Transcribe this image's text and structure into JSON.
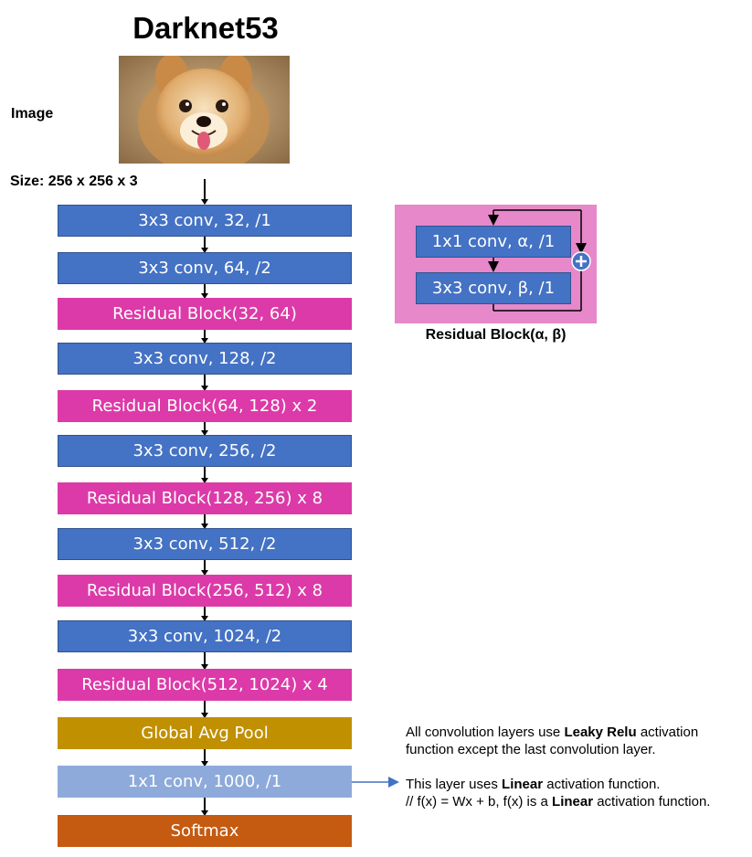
{
  "title": "Darknet53",
  "image_label": "Image",
  "size_label": "Size: 256 x 256 x 3",
  "layers": [
    {
      "label": "3x3 conv, 32, /1",
      "kind": "conv"
    },
    {
      "label": "3x3 conv, 64, /2",
      "kind": "conv"
    },
    {
      "label": "Residual Block(32, 64)",
      "kind": "res"
    },
    {
      "label": "3x3 conv, 128, /2",
      "kind": "conv"
    },
    {
      "label": "Residual Block(64, 128) x 2",
      "kind": "res"
    },
    {
      "label": "3x3 conv, 256, /2",
      "kind": "conv"
    },
    {
      "label": "Residual Block(128, 256) x 8",
      "kind": "res"
    },
    {
      "label": "3x3 conv, 512, /2",
      "kind": "conv"
    },
    {
      "label": "Residual Block(256, 512) x 8",
      "kind": "res"
    },
    {
      "label": "3x3 conv, 1024, /2",
      "kind": "conv"
    },
    {
      "label": "Residual Block(512, 1024) x 4",
      "kind": "res"
    },
    {
      "label": "Global Avg Pool",
      "kind": "pool"
    },
    {
      "label": "1x1 conv, 1000, /1",
      "kind": "fc"
    },
    {
      "label": "Softmax",
      "kind": "soft"
    }
  ],
  "residual_block": {
    "layer1": "1x1 conv, α, /1",
    "layer2": "3x3 conv, β, /1",
    "caption": "Residual Block(α, β)",
    "add_symbol": "+"
  },
  "notes": {
    "activation_prefix": "All convolution layers use ",
    "activation_bold": "Leaky Relu",
    "activation_suffix1": " activation",
    "activation_line2": "function except the last convolution layer.",
    "linear_prefix": "This layer uses ",
    "linear_bold": "Linear",
    "linear_suffix": " activation function.",
    "formula_prefix": "// f(x) = Wx + b, f(x) is a ",
    "formula_bold": "Linear",
    "formula_suffix": " activation function."
  },
  "colors": {
    "conv": "#4472c4",
    "residual": "#dc3aa8",
    "pool": "#c09000",
    "fc": "#8eaadb",
    "softmax": "#c55a11",
    "residual_panel": "#e688c9",
    "note_arrow": "#4472c4"
  }
}
